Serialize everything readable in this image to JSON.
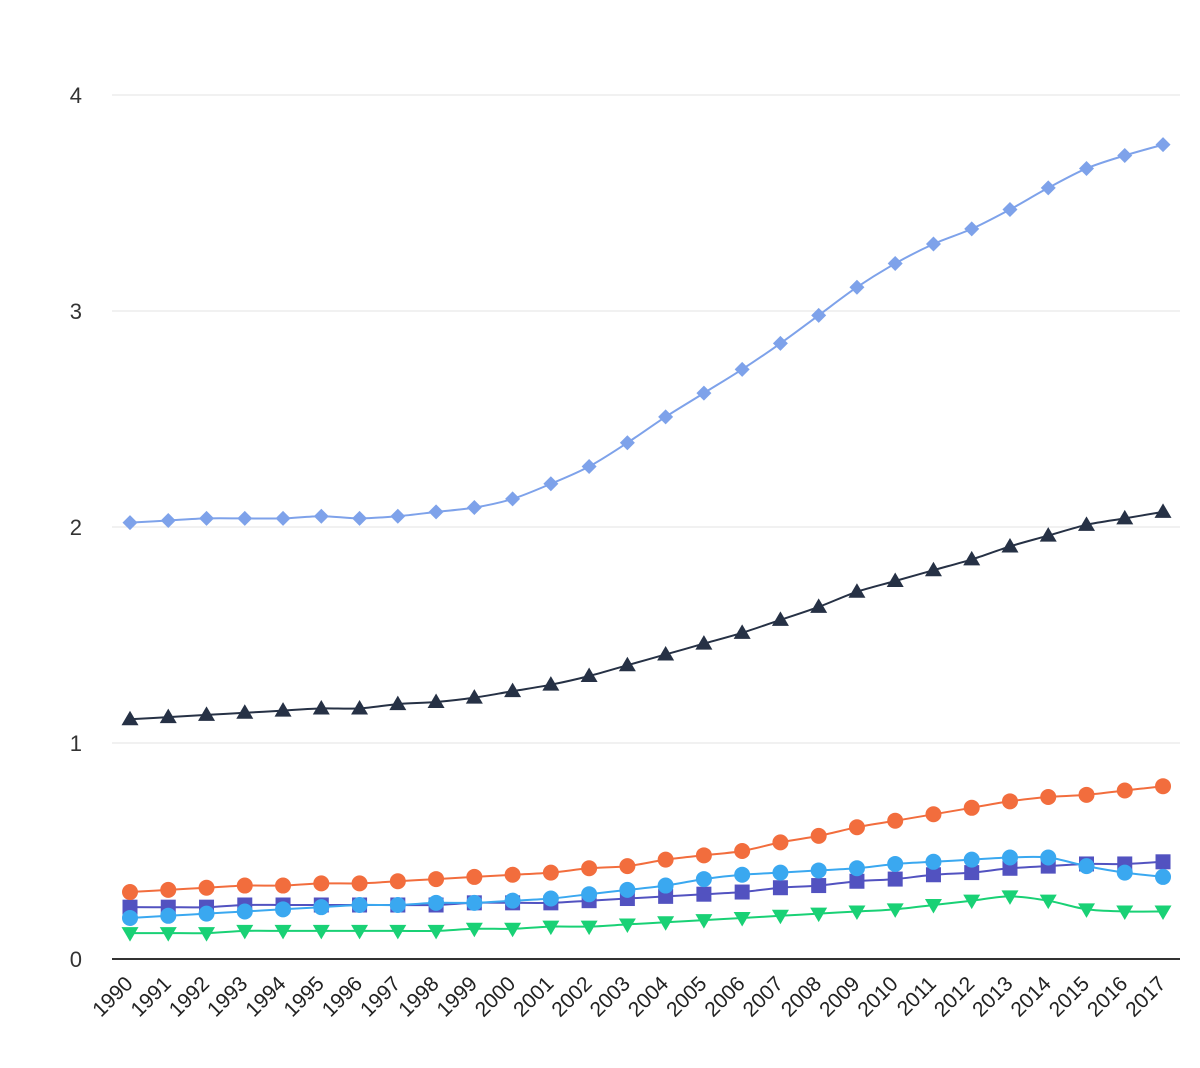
{
  "chart_data": {
    "type": "line",
    "title": "",
    "xlabel": "",
    "ylabel": "",
    "ylim": [
      0,
      4
    ],
    "y_ticks": [
      0,
      1,
      2,
      3,
      4
    ],
    "grid": true,
    "legend": "none",
    "categories": [
      "1990",
      "1991",
      "1992",
      "1993",
      "1994",
      "1995",
      "1996",
      "1997",
      "1998",
      "1999",
      "2000",
      "2001",
      "2002",
      "2003",
      "2004",
      "2005",
      "2006",
      "2007",
      "2008",
      "2009",
      "2010",
      "2011",
      "2012",
      "2013",
      "2014",
      "2015",
      "2016",
      "2017"
    ],
    "series": [
      {
        "color": "#7ea2ea",
        "marker": "diamond",
        "values": [
          2.02,
          2.03,
          2.04,
          2.04,
          2.04,
          2.05,
          2.04,
          2.05,
          2.07,
          2.09,
          2.13,
          2.2,
          2.28,
          2.39,
          2.51,
          2.62,
          2.73,
          2.85,
          2.98,
          3.11,
          3.22,
          3.31,
          3.38,
          3.47,
          3.57,
          3.66,
          3.72,
          3.77
        ]
      },
      {
        "color": "#263145",
        "marker": "triangle-up",
        "values": [
          1.11,
          1.12,
          1.13,
          1.14,
          1.15,
          1.16,
          1.16,
          1.18,
          1.19,
          1.21,
          1.24,
          1.27,
          1.31,
          1.36,
          1.41,
          1.46,
          1.51,
          1.57,
          1.63,
          1.7,
          1.75,
          1.8,
          1.85,
          1.91,
          1.96,
          2.01,
          2.04,
          2.07
        ]
      },
      {
        "color": "#f26d3d",
        "marker": "circle",
        "values": [
          0.31,
          0.32,
          0.33,
          0.34,
          0.34,
          0.35,
          0.35,
          0.36,
          0.37,
          0.38,
          0.39,
          0.4,
          0.42,
          0.43,
          0.46,
          0.48,
          0.5,
          0.54,
          0.57,
          0.61,
          0.64,
          0.67,
          0.7,
          0.73,
          0.75,
          0.76,
          0.78,
          0.8
        ]
      },
      {
        "color": "#3aa8f0",
        "marker": "circle",
        "values": [
          0.19,
          0.2,
          0.21,
          0.22,
          0.23,
          0.24,
          0.25,
          0.25,
          0.26,
          0.26,
          0.27,
          0.28,
          0.3,
          0.32,
          0.34,
          0.37,
          0.39,
          0.4,
          0.41,
          0.42,
          0.44,
          0.45,
          0.46,
          0.47,
          0.47,
          0.43,
          0.4,
          0.38
        ]
      },
      {
        "color": "#5252c0",
        "marker": "square",
        "values": [
          0.24,
          0.24,
          0.24,
          0.25,
          0.25,
          0.25,
          0.25,
          0.25,
          0.25,
          0.26,
          0.26,
          0.26,
          0.27,
          0.28,
          0.29,
          0.3,
          0.31,
          0.33,
          0.34,
          0.36,
          0.37,
          0.39,
          0.4,
          0.42,
          0.43,
          0.44,
          0.44,
          0.45
        ]
      },
      {
        "color": "#19d175",
        "marker": "triangle-down",
        "values": [
          0.12,
          0.12,
          0.12,
          0.13,
          0.13,
          0.13,
          0.13,
          0.13,
          0.13,
          0.14,
          0.14,
          0.15,
          0.15,
          0.16,
          0.17,
          0.18,
          0.19,
          0.2,
          0.21,
          0.22,
          0.23,
          0.25,
          0.27,
          0.29,
          0.27,
          0.23,
          0.22,
          0.22
        ]
      }
    ]
  }
}
